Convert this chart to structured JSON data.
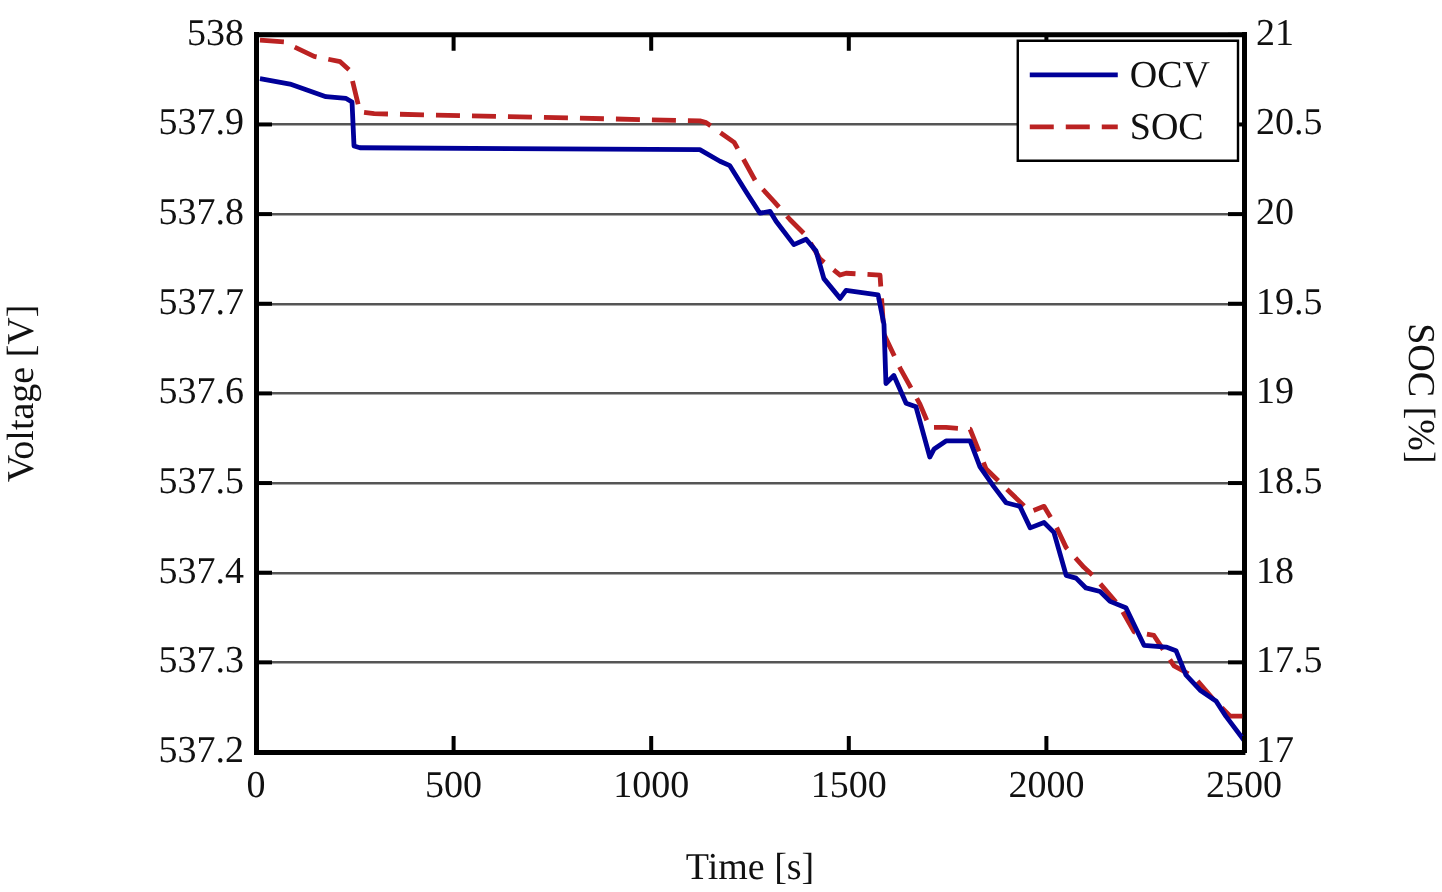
{
  "chart_data": {
    "type": "line",
    "xlabel": "Time [s]",
    "ylabel": "Voltage [V]",
    "y2label": "SOC [%]",
    "xlim": [
      0,
      2500
    ],
    "xticks": [
      0,
      500,
      1000,
      1500,
      2000,
      2500
    ],
    "ylim": [
      537.2,
      538
    ],
    "yticks": [
      537.2,
      537.3,
      537.4,
      537.5,
      537.6,
      537.7,
      537.8,
      537.9,
      538
    ],
    "y2lim": [
      17,
      21
    ],
    "y2ticks": [
      17,
      17.5,
      18,
      18.5,
      19,
      19.5,
      20,
      20.5,
      21
    ],
    "grid": "y",
    "legend": "top right",
    "marker": "none",
    "series": [
      {
        "name": "OCV",
        "color": "#000099",
        "line_style": "solid",
        "x": [
          10,
          86,
          177,
          228,
          243,
          248,
          263,
          1123,
          1174,
          1199,
          1240,
          1275,
          1301,
          1316,
          1361,
          1392,
          1417,
          1437,
          1478,
          1493,
          1574,
          1589,
          1594,
          1614,
          1645,
          1670,
          1705,
          1716,
          1746,
          1807,
          1832,
          1867,
          1898,
          1933,
          1959,
          1994,
          2019,
          2050,
          2075,
          2100,
          2136,
          2161,
          2201,
          2247,
          2303,
          2328,
          2353,
          2389,
          2429,
          2454,
          2500
        ],
        "values": [
          537.951,
          537.945,
          537.931,
          537.929,
          537.925,
          537.876,
          537.874,
          537.872,
          537.859,
          537.854,
          537.825,
          537.801,
          537.803,
          537.792,
          537.766,
          537.772,
          537.759,
          537.728,
          537.706,
          537.715,
          537.71,
          537.677,
          537.611,
          537.62,
          537.589,
          537.585,
          537.529,
          537.538,
          537.547,
          537.547,
          537.518,
          537.496,
          537.478,
          537.474,
          537.45,
          537.456,
          537.445,
          537.397,
          537.394,
          537.383,
          537.379,
          537.368,
          537.361,
          537.319,
          537.317,
          537.313,
          537.286,
          537.269,
          537.257,
          537.24,
          537.213
        ]
      },
      {
        "name": "SOC",
        "color": "#bb2222",
        "line_style": "dashed",
        "axis": "y2",
        "x": [
          10,
          71,
          147,
          213,
          238,
          263,
          299,
          1123,
          1139,
          1210,
          1265,
          1311,
          1351,
          1392,
          1427,
          1478,
          1493,
          1579,
          1589,
          1630,
          1680,
          1705,
          1746,
          1807,
          1847,
          1898,
          1959,
          1994,
          2024,
          2050,
          2095,
          2120,
          2186,
          2222,
          2272,
          2323,
          2373,
          2424,
          2465,
          2500
        ],
        "values": [
          20.97,
          20.96,
          20.88,
          20.85,
          20.8,
          20.57,
          20.56,
          20.52,
          20.51,
          20.4,
          20.18,
          20.07,
          19.97,
          19.88,
          19.75,
          19.66,
          19.67,
          19.66,
          19.33,
          19.14,
          18.94,
          18.81,
          18.81,
          18.8,
          18.58,
          18.47,
          18.34,
          18.37,
          18.26,
          18.14,
          18.03,
          17.98,
          17.81,
          17.67,
          17.65,
          17.48,
          17.42,
          17.29,
          17.2,
          17.2
        ]
      }
    ]
  }
}
